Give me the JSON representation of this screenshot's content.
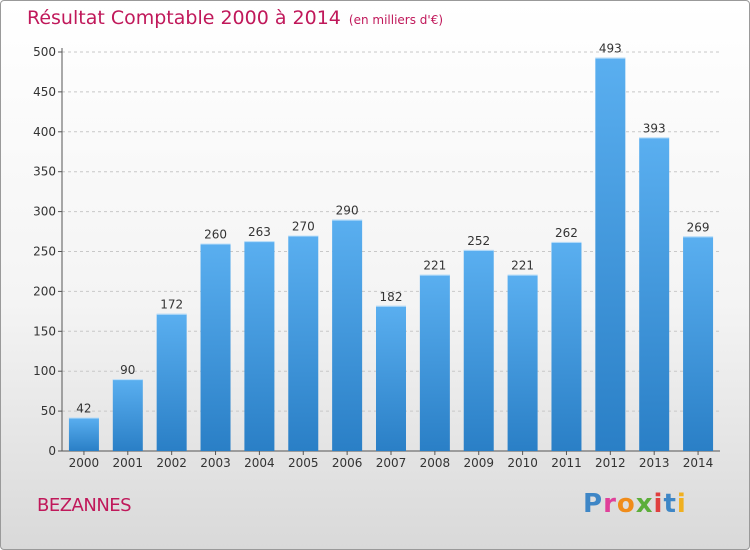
{
  "header": {
    "title": "Résultat Comptable 2000 à 2014",
    "subtitle": "(en milliers d'€)"
  },
  "footer": {
    "city": "BEZANNES",
    "logo_text": "Proxiti"
  },
  "colors": {
    "accent": "#c0185a",
    "bar_top": "#5aaff0",
    "bar_bottom": "#2a7fc6",
    "grid": "#c8c8c8",
    "logo": [
      "#3e86c6",
      "#e0409a",
      "#f08c1a",
      "#5cae3a",
      "#e04040",
      "#3e86c6",
      "#f0b020"
    ]
  },
  "chart_data": {
    "type": "bar",
    "title": "Résultat Comptable 2000 à 2014",
    "subtitle": "(en milliers d'€)",
    "categories": [
      "2000",
      "2001",
      "2002",
      "2003",
      "2004",
      "2005",
      "2006",
      "2007",
      "2008",
      "2009",
      "2010",
      "2011",
      "2012",
      "2013",
      "2014"
    ],
    "values": [
      42,
      90,
      172,
      260,
      263,
      270,
      290,
      182,
      221,
      252,
      221,
      262,
      493,
      393,
      269
    ],
    "ylim": [
      0,
      500
    ],
    "yticks": [
      0,
      50,
      100,
      150,
      200,
      250,
      300,
      350,
      400,
      450,
      500
    ],
    "grid": true
  }
}
